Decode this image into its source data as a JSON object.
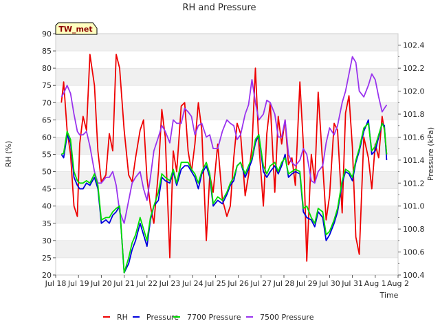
{
  "chart_data": {
    "type": "line",
    "title": "RH and Pressure",
    "xlabel": "Time",
    "ylabel": "RH (%)",
    "y2label": "Pressure (kPa)",
    "badge": "TW_met",
    "xlim": [
      0,
      15
    ],
    "x_tick_labels": [
      "Jul 18",
      "Jul 19",
      "Jul 20",
      "Jul 21",
      "Jul 22",
      "Jul 23",
      "Jul 24",
      "Jul 25",
      "Jul 26",
      "Jul 27",
      "Jul 28",
      "Jul 29",
      "Jul 30",
      "Jul 31",
      "Aug 1",
      "Aug 2"
    ],
    "ylim": [
      20,
      90
    ],
    "y_ticks": [
      20,
      25,
      30,
      35,
      40,
      45,
      50,
      55,
      60,
      65,
      70,
      75,
      80,
      85,
      90
    ],
    "y2lim": [
      100.4,
      102.5
    ],
    "y2_ticks": [
      100.4,
      100.6,
      100.8,
      101.0,
      101.2,
      101.4,
      101.6,
      101.8,
      102.0,
      102.2,
      102.4
    ],
    "grid": "horizontal bands",
    "legend_position": "bottom",
    "series": [
      {
        "name": "RH",
        "axis": "left",
        "color": "#ee0000",
        "x": [
          0.25,
          0.35,
          0.5,
          0.65,
          0.8,
          0.95,
          1.05,
          1.2,
          1.35,
          1.5,
          1.7,
          1.85,
          2.0,
          2.2,
          2.35,
          2.5,
          2.65,
          2.8,
          3.0,
          3.2,
          3.35,
          3.5,
          3.7,
          3.85,
          4.0,
          4.15,
          4.3,
          4.5,
          4.65,
          4.8,
          5.0,
          5.15,
          5.3,
          5.5,
          5.65,
          5.8,
          5.95,
          6.1,
          6.25,
          6.4,
          6.6,
          6.75,
          6.9,
          7.1,
          7.3,
          7.5,
          7.65,
          7.8,
          7.95,
          8.1,
          8.3,
          8.45,
          8.6,
          8.75,
          8.9,
          9.1,
          9.25,
          9.4,
          9.6,
          9.75,
          9.9,
          10.05,
          10.2,
          10.35,
          10.5,
          10.7,
          10.85,
          11.0,
          11.2,
          11.35,
          11.5,
          11.7,
          11.85,
          12.0,
          12.2,
          12.35,
          12.55,
          12.7,
          12.85,
          13.0,
          13.15,
          13.3,
          13.5,
          13.7,
          13.85,
          14.0,
          14.15,
          14.3,
          14.4,
          14.5
        ],
        "values": [
          70,
          76,
          62,
          55,
          40,
          37,
          58,
          66,
          62,
          84,
          75,
          56,
          47,
          49,
          61,
          56,
          84,
          80,
          62,
          49,
          47,
          54,
          62,
          65,
          48,
          40,
          35,
          50,
          68,
          60,
          25,
          56,
          50,
          69,
          70,
          56,
          50,
          58,
          70,
          62,
          30,
          49,
          44,
          58,
          42,
          37,
          40,
          54,
          64,
          61,
          43,
          49,
          57,
          80,
          58,
          40,
          61,
          70,
          44,
          66,
          58,
          65,
          52,
          54,
          46,
          76,
          58,
          24,
          55,
          47,
          73,
          52,
          36,
          43,
          64,
          62,
          38,
          67,
          72,
          57,
          31,
          26,
          60,
          54,
          45,
          58,
          54,
          66,
          62,
          55
        ]
      },
      {
        "name": "Pressure",
        "axis": "right",
        "color": "#0000dd",
        "x": [
          0.25,
          0.35,
          0.5,
          0.65,
          0.8,
          0.95,
          1.05,
          1.2,
          1.35,
          1.5,
          1.7,
          1.85,
          2.0,
          2.2,
          2.35,
          2.5,
          2.65,
          2.8,
          3.0,
          3.2,
          3.35,
          3.5,
          3.7,
          3.85,
          4.0,
          4.15,
          4.3,
          4.5,
          4.65,
          4.8,
          5.0,
          5.15,
          5.3,
          5.5,
          5.65,
          5.8,
          5.95,
          6.1,
          6.25,
          6.4,
          6.6,
          6.75,
          6.9,
          7.1,
          7.3,
          7.5,
          7.65,
          7.8,
          7.95,
          8.1,
          8.3,
          8.45,
          8.6,
          8.75,
          8.9,
          9.1,
          9.25,
          9.4,
          9.6,
          9.75,
          9.9,
          10.05,
          10.2,
          10.35,
          10.5,
          10.7,
          10.85,
          11.0,
          11.2,
          11.35,
          11.5,
          11.7,
          11.85,
          12.0,
          12.2,
          12.35,
          12.55,
          12.7,
          12.85,
          13.0,
          13.15,
          13.3,
          13.5,
          13.7,
          13.85,
          14.0,
          14.15,
          14.3,
          14.4,
          14.5
        ],
        "values": [
          101.45,
          101.42,
          101.62,
          101.55,
          101.25,
          101.18,
          101.15,
          101.15,
          101.2,
          101.18,
          101.25,
          101.15,
          100.85,
          100.88,
          100.85,
          100.92,
          100.95,
          101.0,
          100.42,
          100.5,
          100.62,
          100.7,
          100.85,
          100.75,
          100.65,
          100.88,
          101.0,
          101.05,
          101.25,
          101.22,
          101.2,
          101.3,
          101.18,
          101.32,
          101.35,
          101.35,
          101.3,
          101.25,
          101.15,
          101.28,
          101.35,
          101.25,
          101.0,
          101.05,
          101.02,
          101.1,
          101.18,
          101.22,
          101.35,
          101.38,
          101.25,
          101.32,
          101.4,
          101.55,
          101.62,
          101.3,
          101.25,
          101.3,
          101.35,
          101.28,
          101.35,
          101.45,
          101.25,
          101.28,
          101.3,
          101.28,
          100.95,
          100.9,
          100.88,
          100.82,
          100.95,
          100.9,
          100.7,
          100.75,
          100.85,
          100.95,
          101.2,
          101.3,
          101.28,
          101.22,
          101.38,
          101.48,
          101.65,
          101.75,
          101.45,
          101.48,
          101.6,
          101.72,
          101.7,
          101.4
        ]
      },
      {
        "name": "7700 Pressure",
        "axis": "right",
        "color": "#00dd00",
        "x": [
          0.25,
          0.35,
          0.5,
          0.65,
          0.8,
          0.95,
          1.05,
          1.2,
          1.35,
          1.5,
          1.7,
          1.85,
          2.0,
          2.2,
          2.35,
          2.5,
          2.65,
          2.8,
          3.0,
          3.2,
          3.35,
          3.5,
          3.7,
          3.85,
          4.0,
          4.15,
          4.3,
          4.5,
          4.65,
          4.8,
          5.0,
          5.15,
          5.3,
          5.5,
          5.65,
          5.8,
          5.95,
          6.1,
          6.25,
          6.4,
          6.6,
          6.75,
          6.9,
          7.1,
          7.3,
          7.5,
          7.65,
          7.8,
          7.95,
          8.1,
          8.3,
          8.45,
          8.6,
          8.75,
          8.9,
          9.1,
          9.25,
          9.4,
          9.6,
          9.75,
          9.9,
          10.05,
          10.2,
          10.35,
          10.5,
          10.7,
          10.85,
          11.0,
          11.2,
          11.35,
          11.5,
          11.7,
          11.85,
          12.0,
          12.2,
          12.35,
          12.55,
          12.7,
          12.85,
          13.0,
          13.15,
          13.3,
          13.5,
          13.7,
          13.85,
          14.0,
          14.15,
          14.3,
          14.4,
          14.5
        ],
        "values": [
          101.45,
          101.46,
          101.65,
          101.58,
          101.3,
          101.22,
          101.2,
          101.2,
          101.22,
          101.2,
          101.28,
          101.18,
          100.88,
          100.9,
          100.9,
          100.95,
          100.98,
          101.0,
          100.42,
          100.55,
          100.68,
          100.75,
          100.9,
          100.8,
          100.7,
          100.9,
          101.0,
          101.12,
          101.28,
          101.25,
          101.22,
          101.32,
          101.2,
          101.38,
          101.38,
          101.38,
          101.32,
          101.28,
          101.2,
          101.3,
          101.38,
          101.28,
          101.02,
          101.08,
          101.05,
          101.12,
          101.2,
          101.25,
          101.35,
          101.38,
          101.28,
          101.35,
          101.42,
          101.58,
          101.62,
          101.35,
          101.28,
          101.35,
          101.38,
          101.3,
          101.38,
          101.42,
          101.28,
          101.3,
          101.32,
          101.3,
          100.98,
          101.0,
          100.9,
          100.85,
          100.98,
          100.95,
          100.75,
          100.78,
          100.88,
          100.98,
          101.22,
          101.32,
          101.3,
          101.25,
          101.4,
          101.5,
          101.68,
          101.72,
          101.48,
          101.52,
          101.62,
          101.72,
          101.68,
          101.45
        ]
      },
      {
        "name": "7500 Pressure",
        "axis": "right",
        "color": "#9933ee",
        "x": [
          0.25,
          0.35,
          0.5,
          0.65,
          0.8,
          0.95,
          1.05,
          1.2,
          1.35,
          1.5,
          1.7,
          1.85,
          2.0,
          2.2,
          2.35,
          2.5,
          2.65,
          2.8,
          3.0,
          3.2,
          3.35,
          3.5,
          3.7,
          3.85,
          4.0,
          4.15,
          4.3,
          4.5,
          4.65,
          4.8,
          5.0,
          5.15,
          5.3,
          5.5,
          5.65,
          5.8,
          5.95,
          6.1,
          6.25,
          6.4,
          6.6,
          6.75,
          6.9,
          7.1,
          7.3,
          7.5,
          7.65,
          7.8,
          7.95,
          8.1,
          8.3,
          8.45,
          8.6,
          8.75,
          8.9,
          9.1,
          9.25,
          9.4,
          9.6,
          9.75,
          9.9,
          10.05,
          10.2,
          10.35,
          10.5,
          10.7,
          10.85,
          11.0,
          11.2,
          11.35,
          11.5,
          11.7,
          11.85,
          12.0,
          12.2,
          12.35,
          12.55,
          12.7,
          12.85,
          13.0,
          13.15,
          13.3,
          13.5,
          13.7,
          13.85,
          14.0,
          14.15,
          14.3,
          14.4,
          14.5
        ],
        "values": [
          101.95,
          101.98,
          102.05,
          101.98,
          101.8,
          101.65,
          101.62,
          101.62,
          101.65,
          101.52,
          101.3,
          101.2,
          101.2,
          101.25,
          101.25,
          101.3,
          101.18,
          100.95,
          100.85,
          101.05,
          101.2,
          101.25,
          101.3,
          101.15,
          101.05,
          101.25,
          101.48,
          101.6,
          101.7,
          101.65,
          101.55,
          101.75,
          101.72,
          101.72,
          101.85,
          101.82,
          101.78,
          101.62,
          101.7,
          101.72,
          101.6,
          101.62,
          101.5,
          101.5,
          101.65,
          101.75,
          101.72,
          101.7,
          101.58,
          101.62,
          101.8,
          101.88,
          102.1,
          101.9,
          101.75,
          101.8,
          101.92,
          101.9,
          101.8,
          101.6,
          101.6,
          101.75,
          101.45,
          101.38,
          101.35,
          101.4,
          101.5,
          101.45,
          101.22,
          101.2,
          101.3,
          101.35,
          101.55,
          101.68,
          101.62,
          101.7,
          101.9,
          102.0,
          102.15,
          102.3,
          102.25,
          102.0,
          101.95,
          102.05,
          102.15,
          102.1,
          101.95,
          101.82,
          101.85,
          101.88
        ]
      }
    ]
  }
}
